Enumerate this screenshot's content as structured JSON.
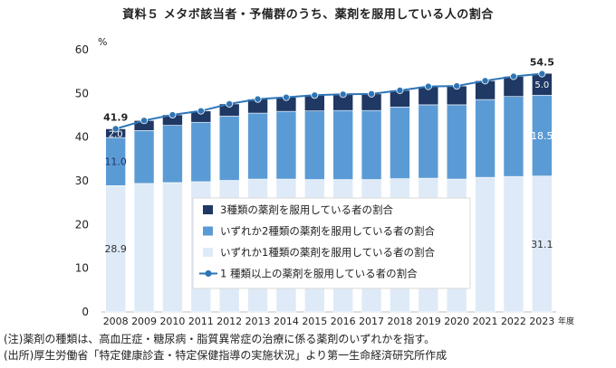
{
  "chart_data": {
    "type": "bar",
    "title": "資料５ メタボ該当者・予備群のうち、薬剤を服用している人の割合",
    "ylabel": "%",
    "xlabel": "年度",
    "ylim": [
      0,
      60
    ],
    "yticks": [
      0,
      10,
      20,
      30,
      40,
      50,
      60
    ],
    "categories": [
      "2008",
      "2009",
      "2010",
      "2011",
      "2012",
      "2013",
      "2014",
      "2015",
      "2016",
      "2017",
      "2018",
      "2019",
      "2020",
      "2021",
      "2022",
      "2023"
    ],
    "series": [
      {
        "name": "いずれか1種類の薬剤を服用している者の割合",
        "kind": "bar",
        "color": "#deeaf7",
        "values": [
          28.9,
          29.4,
          29.6,
          29.8,
          30.1,
          30.4,
          30.4,
          30.3,
          30.3,
          30.3,
          30.5,
          30.6,
          30.4,
          30.8,
          31.0,
          31.1
        ]
      },
      {
        "name": "いずれか2種類の薬剤を服用している者の割合",
        "kind": "bar",
        "color": "#5b9bd5",
        "values": [
          11.0,
          12.1,
          13.1,
          13.6,
          14.7,
          15.1,
          15.5,
          15.7,
          15.8,
          15.8,
          16.4,
          16.8,
          17.0,
          17.8,
          18.3,
          18.5
        ]
      },
      {
        "name": "3種類の薬剤を服用している者の割合",
        "kind": "bar",
        "color": "#1f3864",
        "values": [
          2.0,
          2.3,
          2.4,
          2.6,
          2.8,
          3.2,
          3.2,
          3.6,
          3.7,
          3.8,
          3.8,
          4.2,
          4.3,
          4.3,
          4.6,
          5.0
        ]
      },
      {
        "name": "1 種類以上の薬剤を服用している者の割合",
        "kind": "line",
        "color": "#2e75b6",
        "values": [
          41.9,
          43.8,
          45.1,
          46.0,
          47.6,
          48.7,
          49.1,
          49.6,
          49.8,
          49.9,
          50.7,
          51.6,
          51.7,
          52.9,
          53.9,
          54.5
        ]
      }
    ],
    "data_labels": {
      "first": {
        "one": "28.9",
        "two": "11.0",
        "three": "2.0",
        "total": "41.9"
      },
      "last": {
        "one": "31.1",
        "two": "18.5",
        "three": "5.0",
        "total": "54.5"
      }
    },
    "legend_position": "inside-bottom-center",
    "grid": false
  },
  "notes": [
    "(注)薬剤の種類は、高血圧症・糖尿病・脂質異常症の治療に係る薬剤のいずれかを指す。",
    "(出所)厚生労働省「特定健康診査・特定保健指導の実施状況」より第一生命経済研究所作成"
  ]
}
